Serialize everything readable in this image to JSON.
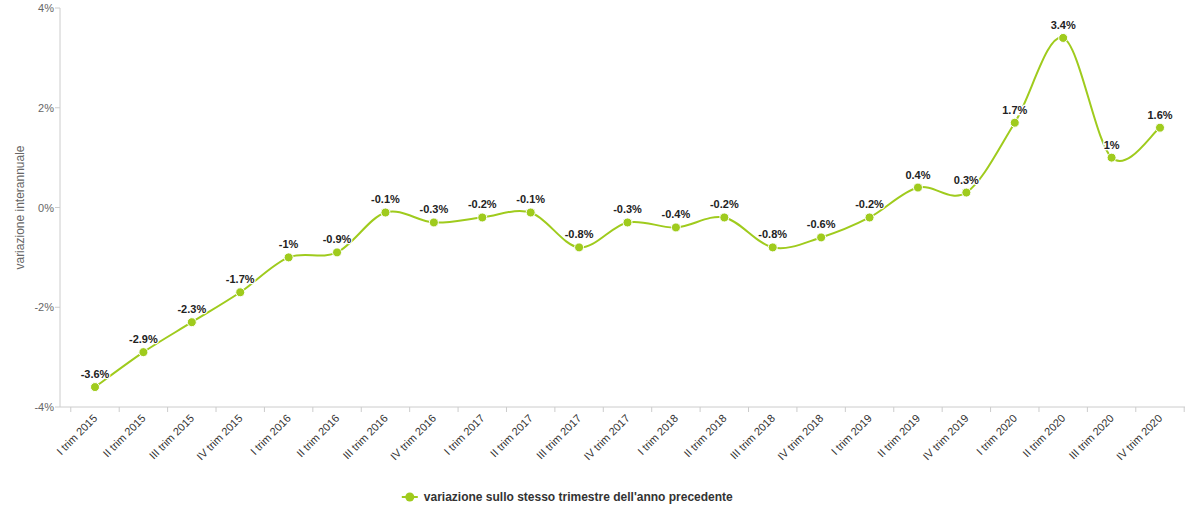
{
  "chart_data": {
    "type": "line",
    "y_label": "variazione interannuale",
    "categories": [
      "I trim 2015",
      "II trim 2015",
      "III trim 2015",
      "IV trim 2015",
      "I trim 2016",
      "II trim 2016",
      "III trim 2016",
      "IV trim 2016",
      "I trim 2017",
      "II trim 2017",
      "III trim 2017",
      "IV trim 2017",
      "I trim 2018",
      "II trim 2018",
      "III trim 2018",
      "IV trim 2018",
      "I trim 2019",
      "II trim 2019",
      "IV trim 2019",
      "I trim 2020",
      "II trim 2020",
      "III trim 2020",
      "IV trim 2020"
    ],
    "series": [
      {
        "name": "variazione sullo stesso trimestre dell'anno precedente",
        "color": "#9fcb1d",
        "values": [
          -3.6,
          -2.9,
          -2.3,
          -1.7,
          -1,
          -0.9,
          -0.1,
          -0.3,
          -0.2,
          -0.1,
          -0.8,
          -0.3,
          -0.4,
          -0.2,
          -0.8,
          -0.6,
          -0.2,
          0.4,
          0.3,
          1.7,
          3.4,
          1,
          1.6
        ],
        "value_labels": [
          "-3.6%",
          "-2.9%",
          "-2.3%",
          "-1.7%",
          "-1%",
          "-0.9%",
          "-0.1%",
          "-0.3%",
          "-0.2%",
          "-0.1%",
          "-0.8%",
          "-0.3%",
          "-0.4%",
          "-0.2%",
          "-0.8%",
          "-0.6%",
          "-0.2%",
          "0.4%",
          "0.3%",
          "1.7%",
          "3.4%",
          "1%",
          "1.6%"
        ]
      }
    ],
    "ylim": [
      -4,
      4
    ],
    "yticks": [
      {
        "value": -4,
        "label": "-4%"
      },
      {
        "value": -2,
        "label": "-2%"
      },
      {
        "value": 0,
        "label": "0%"
      },
      {
        "value": 2,
        "label": "2%"
      },
      {
        "value": 4,
        "label": "4%"
      }
    ],
    "grid": false,
    "data_labels": true,
    "marker": "circle",
    "line_style": "smooth",
    "legend": "bottom"
  }
}
